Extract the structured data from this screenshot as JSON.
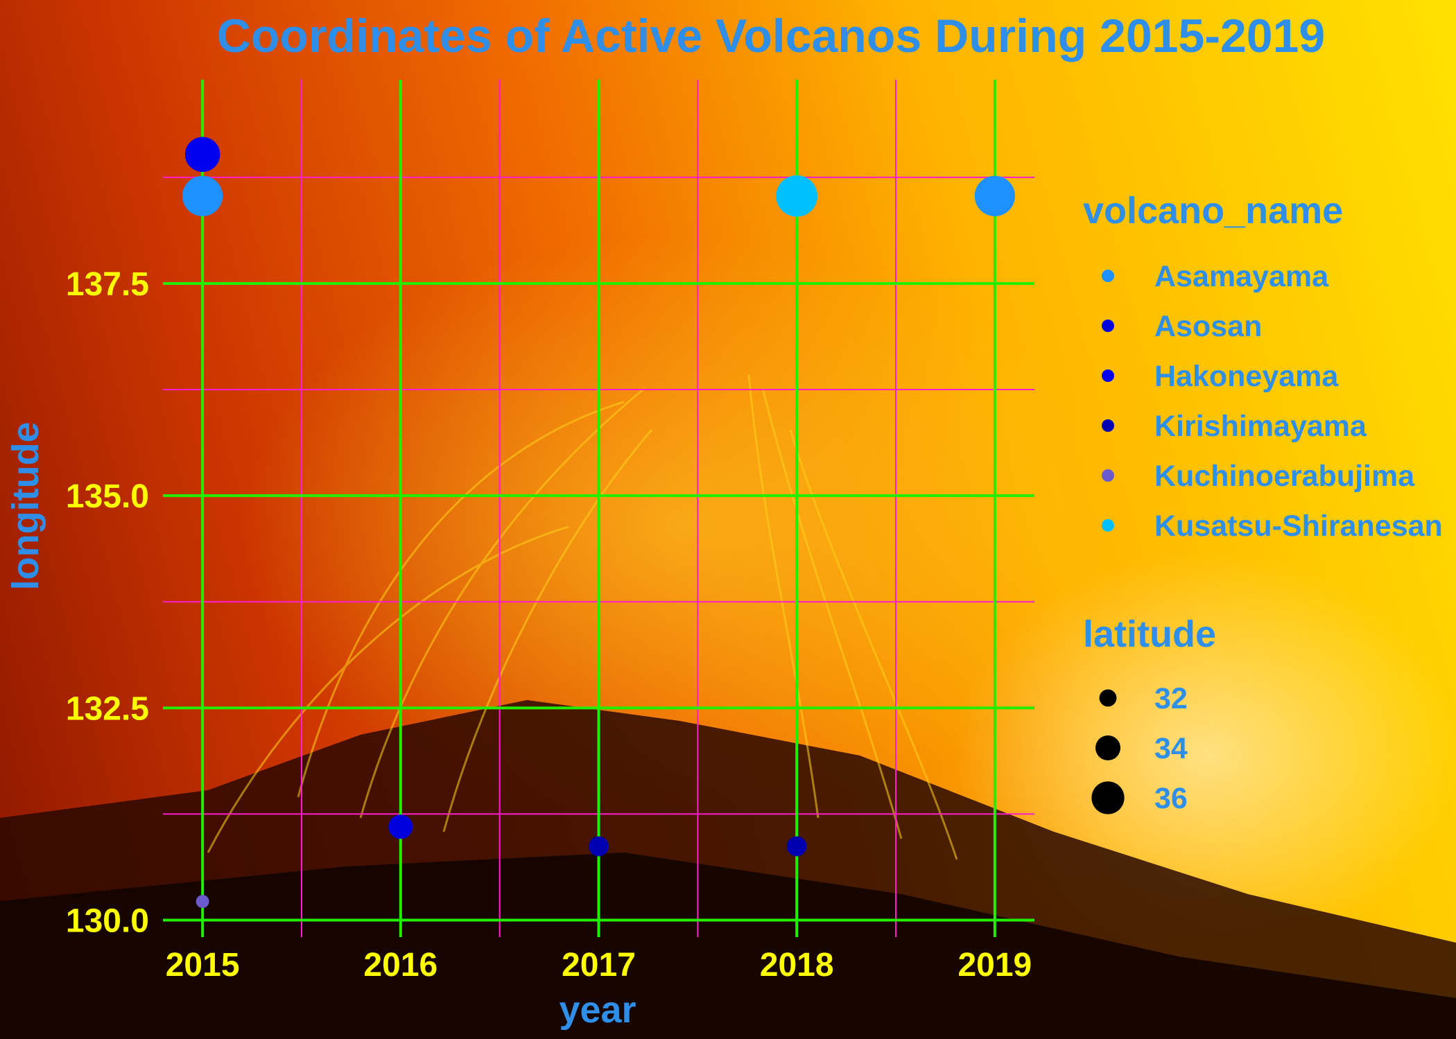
{
  "chart_data": {
    "type": "scatter",
    "title": "Coordinates of Active Volcanos During 2015-2019",
    "xlabel": "year",
    "ylabel": "longitude",
    "x_ticks": [
      "2015",
      "2016",
      "2017",
      "2018",
      "2019"
    ],
    "y_ticks": [
      "130.0",
      "132.5",
      "135.0",
      "137.5"
    ],
    "xlim": [
      2014.8,
      2019.2
    ],
    "ylim": [
      129.8,
      139.9
    ],
    "grid": true,
    "legend_position": "right",
    "color_legend": {
      "title": "volcano_name",
      "items": [
        {
          "label": "Asamayama",
          "color": "#1e90ff"
        },
        {
          "label": "Asosan",
          "color": "#0000dd"
        },
        {
          "label": "Hakoneyama",
          "color": "#0000ee"
        },
        {
          "label": "Kirishimayama",
          "color": "#0000b0"
        },
        {
          "label": "Kuchinoerabujima",
          "color": "#6a5acd"
        },
        {
          "label": "Kusatsu-Shiranesan",
          "color": "#00bfff"
        }
      ]
    },
    "size_legend": {
      "title": "latitude",
      "items": [
        {
          "label": "32",
          "value": 32
        },
        {
          "label": "34",
          "value": 34
        },
        {
          "label": "36",
          "value": 36
        }
      ]
    },
    "points": [
      {
        "year": 2015,
        "longitude": 139.02,
        "latitude": 35.23,
        "volcano": "Hakoneyama"
      },
      {
        "year": 2015,
        "longitude": 138.53,
        "latitude": 36.4,
        "volcano": "Asamayama"
      },
      {
        "year": 2015,
        "longitude": 130.22,
        "latitude": 30.44,
        "volcano": "Kuchinoerabujima"
      },
      {
        "year": 2016,
        "longitude": 131.1,
        "latitude": 32.88,
        "volcano": "Asosan"
      },
      {
        "year": 2017,
        "longitude": 130.87,
        "latitude": 31.93,
        "volcano": "Kirishimayama"
      },
      {
        "year": 2018,
        "longitude": 138.53,
        "latitude": 36.62,
        "volcano": "Kusatsu-Shiranesan"
      },
      {
        "year": 2018,
        "longitude": 130.87,
        "latitude": 31.93,
        "volcano": "Kirishimayama"
      },
      {
        "year": 2019,
        "longitude": 138.53,
        "latitude": 36.4,
        "volcano": "Asamayama"
      }
    ]
  }
}
